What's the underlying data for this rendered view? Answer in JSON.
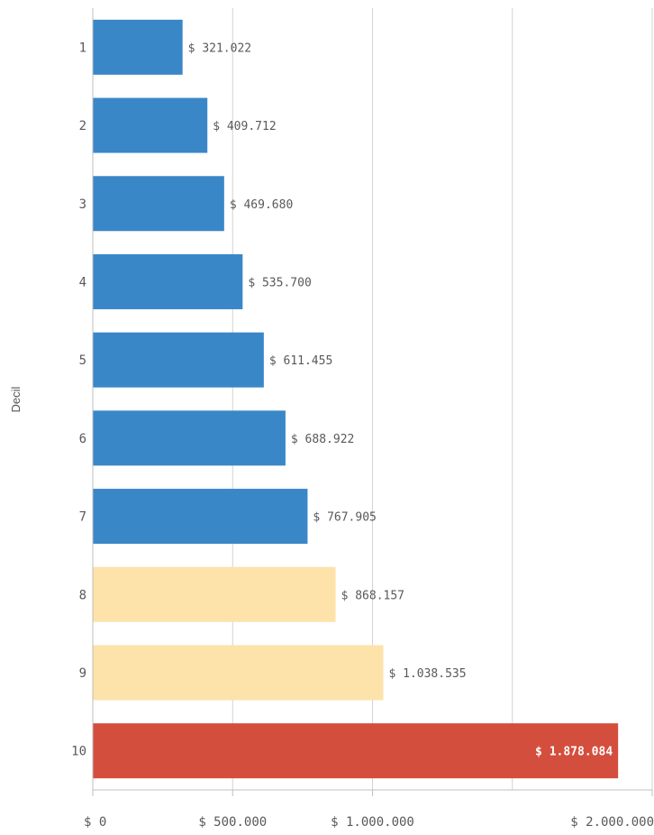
{
  "chart_data": {
    "type": "bar",
    "orientation": "horizontal",
    "title": "",
    "xlabel": "",
    "ylabel": "Decil",
    "categories": [
      "1",
      "2",
      "3",
      "4",
      "5",
      "6",
      "7",
      "8",
      "9",
      "10"
    ],
    "values": [
      321022,
      409712,
      469680,
      535700,
      611455,
      688922,
      767905,
      868157,
      1038535,
      1878084
    ],
    "value_labels": [
      "$ 321.022",
      "$ 409.712",
      "$ 469.680",
      "$ 535.700",
      "$ 611.455",
      "$ 688.922",
      "$ 767.905",
      "$ 868.157",
      "$ 1.038.535",
      "$ 1.878.084"
    ],
    "bar_colors": [
      "#3a87c8",
      "#3a87c8",
      "#3a87c8",
      "#3a87c8",
      "#3a87c8",
      "#3a87c8",
      "#3a87c8",
      "#fde2aa",
      "#fde2aa",
      "#d44e3d"
    ],
    "xlim": [
      0,
      2000000
    ],
    "x_ticks": [
      0,
      500000,
      1000000,
      2000000
    ],
    "x_tick_labels": [
      "$ 0",
      "$ 500.000",
      "$ 1.000.000",
      "$ 2.000.000"
    ],
    "gridlines": [
      500000,
      1000000,
      1500000,
      2000000
    ],
    "grid": true,
    "legend": "none"
  }
}
